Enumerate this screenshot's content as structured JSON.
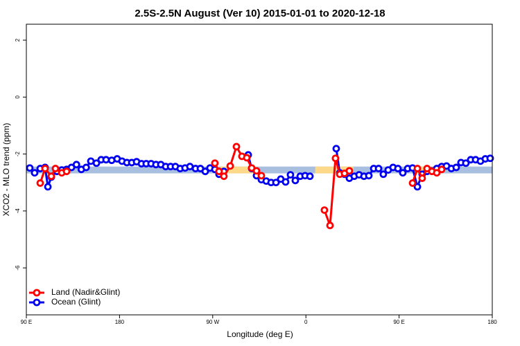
{
  "chart_data": {
    "type": "line",
    "title": "2.5S-2.5N August (Ver 10)   2015-01-01 to 2020-12-18",
    "xlabel": "Longitude (deg E)",
    "ylabel": "XCO2 - MLO trend (ppm)",
    "xlim": [
      90,
      540
    ],
    "ylim": [
      -7.65,
      2.56
    ],
    "xticks": [
      {
        "value": 90,
        "label": "90 E"
      },
      180,
      {
        "value": 270,
        "label": "90 W"
      },
      {
        "value": 360,
        "label": "0"
      },
      {
        "value": 450,
        "label": "90 E"
      },
      {
        "value": 540,
        "label": "180"
      }
    ],
    "yticks": [
      -6,
      -4,
      -2,
      0,
      2
    ],
    "band": [
      -2.68,
      -2.44
    ],
    "band_color": "#a9bfdf",
    "land_band_color": "#ffd98a",
    "land_ranges": [
      [
        277.5,
        312.3
      ],
      [
        369,
        406
      ],
      [
        467,
        491
      ]
    ],
    "legend": "bottom-left",
    "series": [
      {
        "name": "Land (Nadir&Glint)",
        "color": "#ff0000",
        "x": [
          103.4,
          108.1,
          114.1,
          118.1,
          124.2,
          128.9,
          null,
          272.1,
          276.1,
          280.8,
          286.9,
          292.9,
          298.2,
          302.9,
          307.6,
          312.3,
          317.0,
          null,
          377.9,
          383.3,
          388.6,
          392.7,
          397.3,
          402.0,
          null,
          463.0,
          467.7,
          472.3,
          477.0,
          481.7,
          486.4,
          491.1
        ],
        "values": [
          -3.02,
          -2.51,
          -2.78,
          -2.51,
          -2.66,
          -2.61,
          null,
          -2.32,
          -2.61,
          -2.78,
          -2.42,
          -1.74,
          -2.08,
          -2.13,
          -2.49,
          -2.59,
          -2.76,
          null,
          -3.97,
          -4.51,
          -2.15,
          -2.71,
          -2.68,
          -2.59,
          null,
          -3.02,
          -2.51,
          -2.85,
          -2.51,
          -2.61,
          -2.66,
          -2.54
        ]
      },
      {
        "name": "Ocean (Glint)",
        "color": "#0000ee",
        "x": [
          93.3,
          98.0,
          103.4,
          108.1,
          110.8,
          114.1,
          119.5,
          124.2,
          128.9,
          133.6,
          138.4,
          143.1,
          147.8,
          152.3,
          157.7,
          162.3,
          167.0,
          172.4,
          177.7,
          182.4,
          187.1,
          191.8,
          196.5,
          201.2,
          205.8,
          210.5,
          215.2,
          219.9,
          224.6,
          229.3,
          234.0,
          238.6,
          243.3,
          248.0,
          253.4,
          258.1,
          262.8,
          267.4,
          272.1,
          276.1,
          280.8,
          null,
          304.3,
          307.6,
          312.3,
          317.0,
          321.7,
          326.4,
          331.1,
          335.7,
          340.4,
          345.1,
          349.8,
          354.5,
          359.2,
          363.9,
          null,
          389.3,
          392.7,
          397.3,
          402.0,
          406.7,
          411.4,
          416.1,
          420.8,
          425.5,
          430.2,
          434.8,
          439.5,
          444.2,
          448.9,
          453.6,
          458.3,
          463.0,
          467.7,
          472.3,
          477.0,
          481.7,
          486.4,
          491.1,
          495.8,
          500.5,
          505.2,
          509.8,
          514.5,
          519.2,
          523.9,
          528.6,
          533.3,
          538.0
        ],
        "values": [
          -2.49,
          -2.66,
          -2.51,
          -2.47,
          -3.15,
          -2.81,
          -2.61,
          -2.56,
          -2.54,
          -2.47,
          -2.37,
          -2.54,
          -2.47,
          -2.25,
          -2.32,
          -2.2,
          -2.2,
          -2.22,
          -2.17,
          -2.25,
          -2.3,
          -2.3,
          -2.27,
          -2.34,
          -2.34,
          -2.34,
          -2.37,
          -2.37,
          -2.44,
          -2.44,
          -2.44,
          -2.51,
          -2.49,
          -2.44,
          -2.51,
          -2.51,
          -2.61,
          -2.49,
          -2.54,
          -2.71,
          -2.61,
          null,
          -2.03,
          -2.51,
          -2.76,
          -2.9,
          -2.95,
          -3.0,
          -3.0,
          -2.88,
          -2.98,
          -2.73,
          -2.93,
          -2.78,
          -2.76,
          -2.78,
          null,
          -1.81,
          -2.66,
          -2.71,
          -2.85,
          -2.78,
          -2.73,
          -2.78,
          -2.76,
          -2.51,
          -2.51,
          -2.71,
          -2.56,
          -2.47,
          -2.51,
          -2.66,
          -2.51,
          -2.49,
          -3.15,
          -2.71,
          -2.61,
          -2.59,
          -2.51,
          -2.44,
          -2.42,
          -2.51,
          -2.47,
          -2.3,
          -2.32,
          -2.2,
          -2.2,
          -2.25,
          -2.17,
          -2.15
        ]
      }
    ]
  }
}
